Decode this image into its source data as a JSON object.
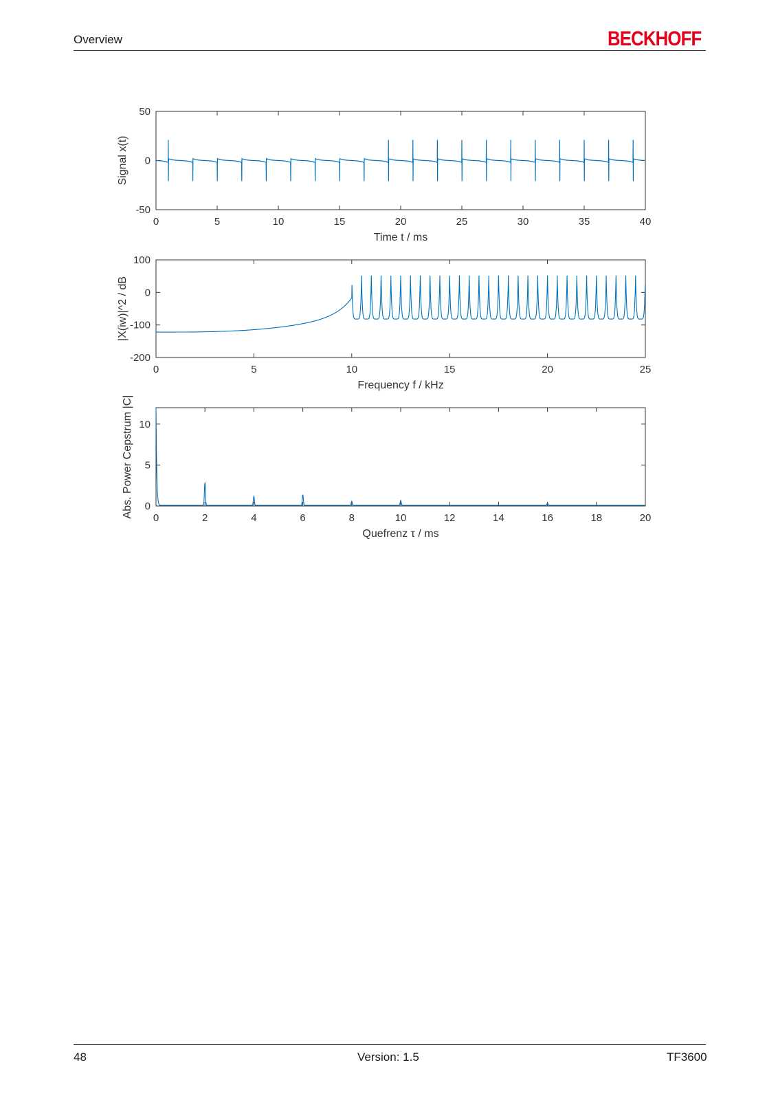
{
  "header": {
    "title": "Overview",
    "logo": "BECKHOFF"
  },
  "footer": {
    "page_number": "48",
    "version": "Version: 1.5",
    "product": "TF3600"
  },
  "colors": {
    "series": "#0072bd",
    "logo": "#e2001a"
  },
  "chart_data": [
    {
      "type": "line",
      "xlabel": "Time t / ms",
      "ylabel": "Signal x(t)",
      "xlim": [
        0,
        40
      ],
      "ylim": [
        -50,
        50
      ],
      "xticks": [
        0,
        5,
        10,
        15,
        20,
        25,
        30,
        35,
        40
      ],
      "yticks": [
        -50,
        0,
        50
      ],
      "series": [
        {
          "pulse_period_ms": 2,
          "first_pulse_ms": 1,
          "pulse_peak": 21,
          "pulse_trough": -21
        }
      ]
    },
    {
      "type": "line",
      "xlabel": "Frequency f / kHz",
      "ylabel": "|X(iw)|^2 / dB",
      "xlim": [
        0,
        25
      ],
      "ylim": [
        -200,
        100
      ],
      "xticks": [
        0,
        5,
        10,
        15,
        20,
        25
      ],
      "yticks": [
        -200,
        -100,
        0,
        100
      ],
      "series": [
        {
          "start_db": -122,
          "onset_khz": 10,
          "peak_spacing_khz": 0.5,
          "peak_db": 52,
          "trough_db": -82,
          "end_db": -78
        }
      ]
    },
    {
      "type": "line",
      "xlabel": "Quefrenz τ / ms",
      "ylabel": "Abs. Power Cepstrum |C|",
      "xlim": [
        0,
        20
      ],
      "ylim": [
        0,
        12
      ],
      "xticks": [
        0,
        2,
        4,
        6,
        8,
        10,
        12,
        14,
        16,
        18,
        20
      ],
      "yticks": [
        0,
        5,
        10
      ],
      "series": [
        {
          "peaks": [
            [
              0,
              12
            ],
            [
              2,
              2.8
            ],
            [
              4,
              1.1
            ],
            [
              6,
              1.3
            ],
            [
              8,
              0.5
            ],
            [
              10,
              0.6
            ],
            [
              16,
              0.3
            ]
          ]
        }
      ]
    }
  ]
}
